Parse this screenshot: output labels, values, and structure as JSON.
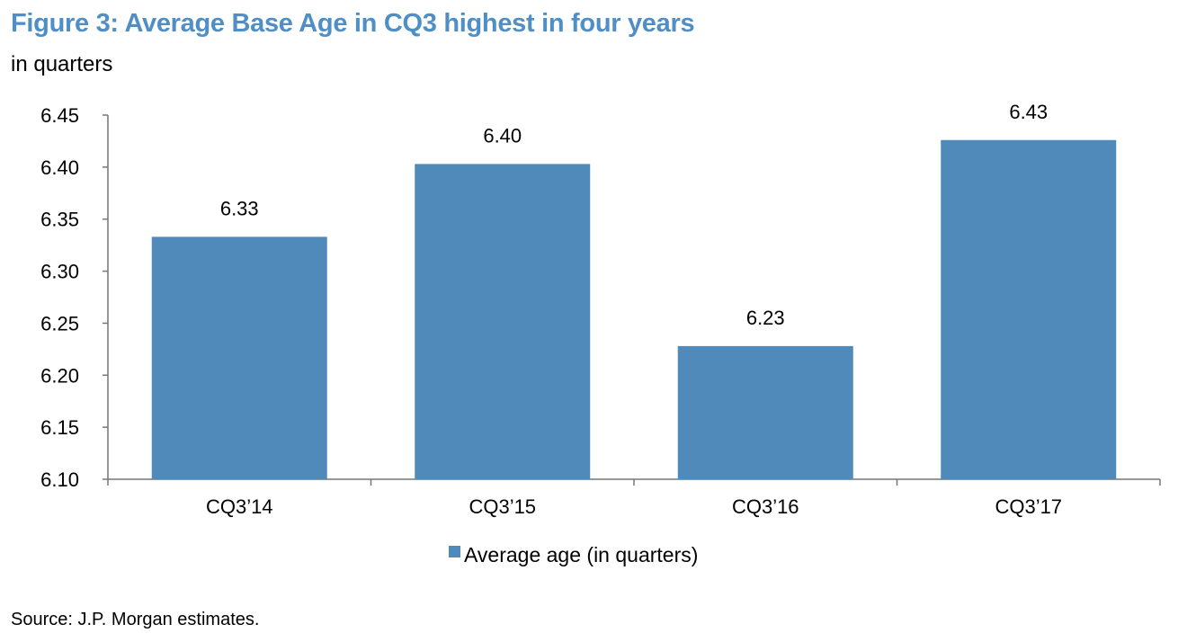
{
  "figure": {
    "title": "Figure 3: Average Base Age in CQ3 highest in four years",
    "subtitle": "in quarters",
    "source": "Source: J.P. Morgan estimates."
  },
  "chart_data": {
    "type": "bar",
    "categories": [
      "CQ3’14",
      "CQ3’15",
      "CQ3’16",
      "CQ3’17"
    ],
    "series": [
      {
        "name": "Average age (in quarters)",
        "values": [
          6.333,
          6.403,
          6.228,
          6.426
        ],
        "data_labels": [
          "6.33",
          "6.40",
          "6.23",
          "6.43"
        ],
        "color": "#4f8abb"
      }
    ],
    "ylim": [
      6.1,
      6.45
    ],
    "yticks": [
      "6.10",
      "6.15",
      "6.20",
      "6.25",
      "6.30",
      "6.35",
      "6.40",
      "6.45"
    ],
    "grid": false,
    "legend_position": "bottom"
  }
}
